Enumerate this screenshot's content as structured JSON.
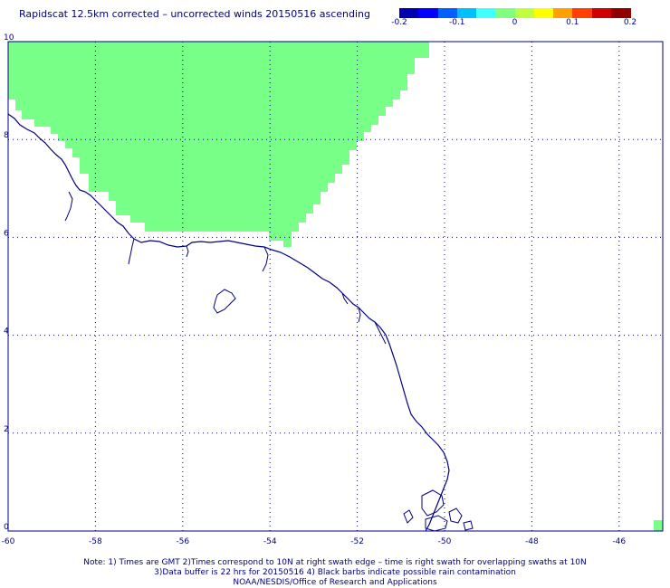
{
  "title": "Rapidscat 12.5km corrected – uncorrected winds 20150516 ascending",
  "colorbar": {
    "colors": [
      "#0000b0",
      "#0000ff",
      "#0060ff",
      "#00c0ff",
      "#40ffff",
      "#80ff80",
      "#c0ff40",
      "#ffff00",
      "#ffa000",
      "#ff4000",
      "#d00000",
      "#900000"
    ],
    "ticks": [
      {
        "label": "-0.2",
        "value": -0.2
      },
      {
        "label": "-0.1",
        "value": -0.1
      },
      {
        "label": "0",
        "value": 0
      },
      {
        "label": "0.1",
        "value": 0.1
      },
      {
        "label": "0.2",
        "value": 0.2
      }
    ],
    "range": [
      -0.2,
      0.2
    ]
  },
  "map": {
    "lon_range": [
      -60,
      -45
    ],
    "lat_range": [
      0,
      10
    ],
    "lon_ticks": [
      {
        "label": "-60",
        "value": -60
      },
      {
        "label": "-58",
        "value": -58
      },
      {
        "label": "-56",
        "value": -56
      },
      {
        "label": "-54",
        "value": -54
      },
      {
        "label": "-52",
        "value": -52
      },
      {
        "label": "-50",
        "value": -50
      },
      {
        "label": "-48",
        "value": -48
      },
      {
        "label": "-46",
        "value": -46
      }
    ],
    "lat_ticks": [
      {
        "label": "0",
        "value": 0
      },
      {
        "label": "2",
        "value": 2
      },
      {
        "label": "4",
        "value": 4
      },
      {
        "label": "6",
        "value": 6
      },
      {
        "label": "8",
        "value": 8
      },
      {
        "label": "10",
        "value": 10
      }
    ],
    "swath_color": "#77ff88",
    "coast_color": "#000080",
    "grid_color": "#000080"
  },
  "notes": [
    "Note: 1) Times are GMT 2)Times correspond to 10N at right swath edge – time is right swath for overlapping swaths at 10N",
    "3)Data buffer is 22 hrs for 20150516 4) Black barbs indicate possible rain contamination",
    "NOAA/NESDIS/Office of Research and Applications"
  ]
}
